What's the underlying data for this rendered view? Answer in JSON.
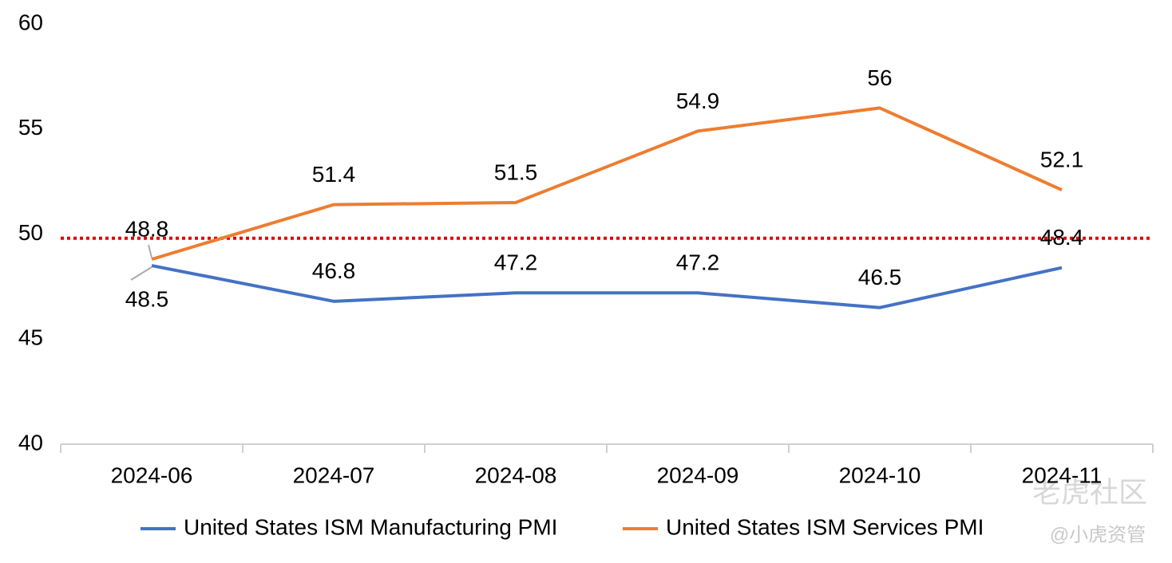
{
  "chart_data": {
    "type": "line",
    "categories": [
      "2024-06",
      "2024-07",
      "2024-08",
      "2024-09",
      "2024-10",
      "2024-11"
    ],
    "series": [
      {
        "name": "United States ISM Manufacturing PMI",
        "color": "#4472c4",
        "values": [
          48.5,
          46.8,
          47.2,
          47.2,
          46.5,
          48.4
        ]
      },
      {
        "name": "United States ISM Services PMI",
        "color": "#ed7d31",
        "values": [
          48.8,
          51.4,
          51.5,
          54.9,
          56,
          52.1
        ]
      }
    ],
    "ylim": [
      40,
      60
    ],
    "yticks": [
      40,
      45,
      50,
      55,
      60
    ],
    "reference_line": {
      "value": 49.8,
      "color": "#e00000"
    },
    "legend": "bottom",
    "watermark": [
      "老虎社区",
      "@小虎资管"
    ]
  }
}
